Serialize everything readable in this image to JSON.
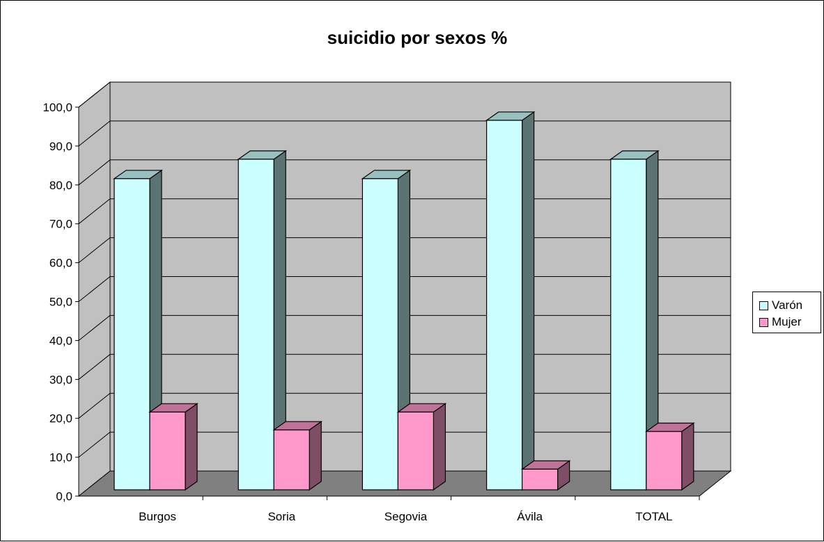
{
  "chart_data": {
    "type": "bar",
    "title": "suicidio por sexos %",
    "categories": [
      "Burgos",
      "Soria",
      "Segovia",
      "Ávila",
      "TOTAL"
    ],
    "series": [
      {
        "name": "Varón",
        "values": [
          80.0,
          85.0,
          80.0,
          95.0,
          85.0
        ],
        "color": "#CCFFFF"
      },
      {
        "name": "Mujer",
        "values": [
          20.0,
          15.4,
          20.0,
          5.3,
          15.0
        ],
        "color": "#FF99CC"
      }
    ],
    "ylim": [
      0,
      100
    ],
    "yticks": [
      "0,0",
      "10,0",
      "20,0",
      "30,0",
      "40,0",
      "50,0",
      "60,0",
      "70,0",
      "80,0",
      "90,0",
      "100,0"
    ],
    "grid": true,
    "style": "3d-clustered-column",
    "legend_position": "right",
    "colors": {
      "wall": "#C0C0C0",
      "floor": "#808080",
      "border": "#000000"
    }
  }
}
